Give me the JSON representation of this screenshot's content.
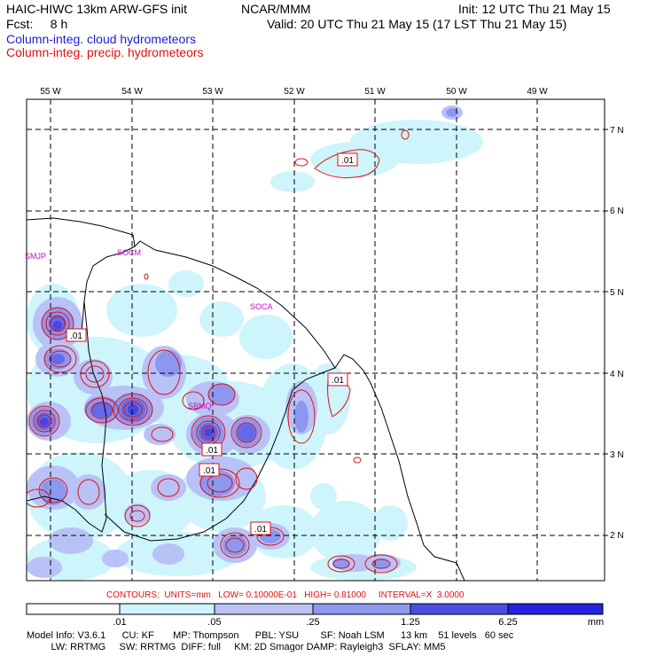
{
  "header": {
    "line1_left": "HAIC-HIWC 13km ARW-GFS init",
    "line1_mid": "NCAR/MMM",
    "line1_right": "Init: 12 UTC Thu 21 May 15",
    "line2_left": "Fcst:     8 h",
    "line2_right": "Valid: 20 UTC Thu 21 May 15 (17 LST Thu 21 May 15)",
    "legend_cloud": "Column-integ. cloud hydrometeors",
    "legend_precip": "Column-integ. precip. hydrometeors"
  },
  "axes": {
    "lon_labels": [
      "55 W",
      "54 W",
      "53 W",
      "52 W",
      "51 W",
      "50 W",
      "49 W"
    ],
    "lat_labels": [
      "7 N",
      "6 N",
      "5 N",
      "4 N",
      "3 N",
      "2 N"
    ]
  },
  "places": [
    "SMJP",
    "SOCM",
    "SOCA",
    "SBMQ"
  ],
  "contour_labels": [
    ".01",
    ".01",
    ".01",
    ".01",
    ".01",
    ".01"
  ],
  "contours_note": "CONTOURS:  UNITS=mm   LOW= 0.10000E-01   HIGH= 0.81000     INTERVAL=X  3.0000",
  "colorbar": {
    "ticks": [
      ".01",
      ".05",
      ".25",
      "1.25",
      "6.25"
    ],
    "unit": "mm",
    "colors": [
      "#ffffff",
      "#cdf5fb",
      "#b9c2f7",
      "#8e97f0",
      "#6469ea",
      "#4545e6",
      "#2727dc"
    ]
  },
  "model_info": {
    "line1": "Model Info: V3.6.1      CU: KF       MP: Thompson      PBL: YSU        SF: Noah LSM      13 km    51 levels   60 sec",
    "line2": "         LW: RRTMG     SW: RRTMG  DIFF: full     KM: 2D Smagor DAMP: Rayleigh3  SFLAY: MM5"
  }
}
